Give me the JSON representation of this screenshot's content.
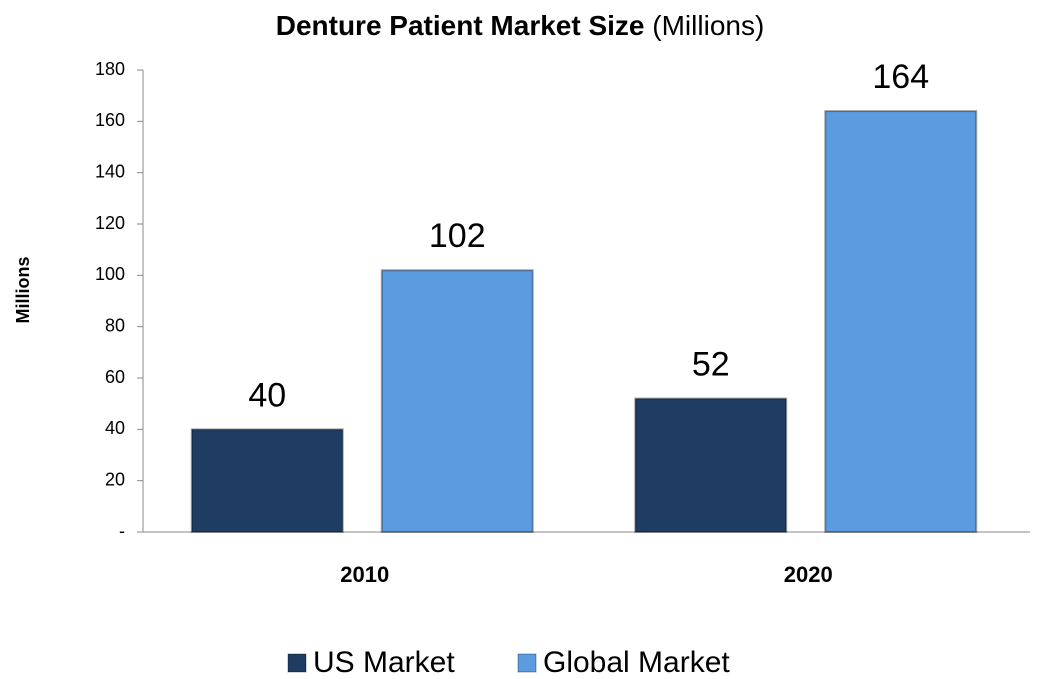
{
  "chart_data": {
    "type": "bar",
    "title": "Denture Patient Market Size",
    "subtitle": "(Millions)",
    "y_label": "Millions",
    "categories": [
      "2010",
      "2020"
    ],
    "series": [
      {
        "name": "US Market",
        "color": "#1f3c63",
        "values": [
          40,
          52
        ]
      },
      {
        "name": "Global Market",
        "color": "#5b9be0",
        "values": [
          102,
          164
        ]
      }
    ],
    "ylim": [
      0,
      180
    ],
    "yticks": [
      {
        "value": 0,
        "label": "-"
      },
      20,
      40,
      60,
      80,
      100,
      120,
      140,
      160,
      180
    ],
    "legend": "bottom"
  }
}
